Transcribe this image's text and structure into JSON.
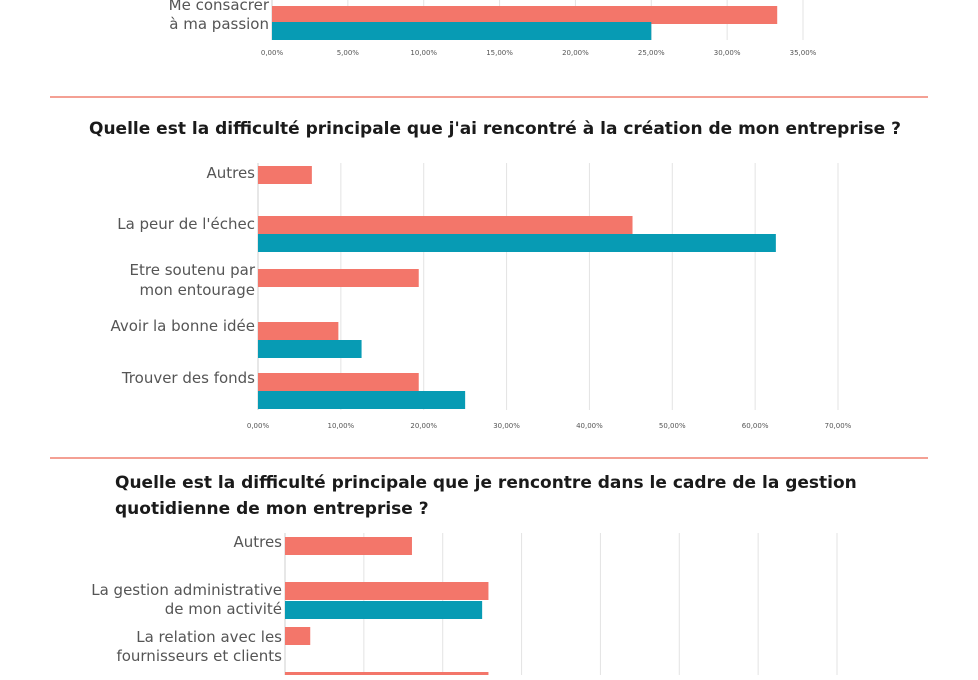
{
  "colors": {
    "coral": "#f3766a",
    "teal": "#079bb4",
    "separator": "#f08070",
    "grid": "#e3e3e3"
  },
  "chart_data": [
    {
      "type": "bar",
      "orientation": "horizontal",
      "title": "",
      "categories": [
        [
          "Me consacrer",
          "à ma passion"
        ]
      ],
      "series": [
        {
          "color": "coral",
          "values": [
            33.3
          ]
        },
        {
          "color": "teal",
          "values": [
            25.0
          ]
        }
      ],
      "xlim": [
        0,
        35
      ],
      "xticks": [
        "0,00%",
        "5,00%",
        "10,00%",
        "15,00%",
        "20,00%",
        "25,00%",
        "30,00%",
        "35,00%"
      ],
      "grid": true
    },
    {
      "type": "bar",
      "orientation": "horizontal",
      "title": "Quelle est la difficulté principale que j'ai rencontré à la création de mon entreprise ?",
      "categories": [
        [
          "Autres"
        ],
        [
          "La peur de l'échec"
        ],
        [
          "Etre soutenu par",
          "mon entourage"
        ],
        [
          "Avoir la bonne idée"
        ],
        [
          "Trouver des fonds"
        ]
      ],
      "series": [
        {
          "color": "coral",
          "values": [
            6.5,
            45.2,
            19.4,
            9.7,
            19.4
          ]
        },
        {
          "color": "teal",
          "values": [
            0,
            62.5,
            0,
            12.5,
            25.0
          ]
        }
      ],
      "xlim": [
        0,
        70
      ],
      "xticks": [
        "0,00%",
        "10,00%",
        "20,00%",
        "30,00%",
        "40,00%",
        "50,00%",
        "60,00%",
        "70,00%"
      ],
      "grid": true
    },
    {
      "type": "bar",
      "orientation": "horizontal",
      "title": "Quelle est la difficulté principale que je rencontre dans le cadre de la gestion quotidienne de mon entreprise ?",
      "categories": [
        [
          "Autres"
        ],
        [
          "La gestion administrative",
          "de  mon activité"
        ],
        [
          "La relation avec les",
          "fournisseurs et clients"
        ],
        [
          ""
        ]
      ],
      "series": [
        {
          "color": "coral",
          "values": [
            16.1,
            25.8,
            3.2,
            25.8
          ]
        },
        {
          "color": "teal",
          "values": [
            0,
            25.0,
            0,
            0
          ]
        }
      ],
      "xlim": [
        0,
        70
      ],
      "grid": true
    }
  ]
}
